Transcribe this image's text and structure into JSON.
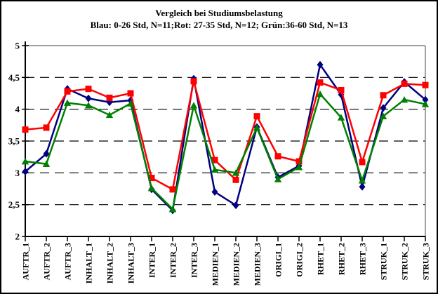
{
  "chart_data": {
    "type": "line",
    "title": "Vergleich bei Studiumsbelastung",
    "subtitle": "Blau: 0-26 Std, N=11;Rot: 27-35 Std, N=12; Grün:36-60 Std, N=13",
    "categories": [
      "AUFTR_1",
      "AUFTR_2",
      "AUFTR_3",
      "INHALT_1",
      "INHALT_2",
      "INHALT_3",
      "INTER_1",
      "INTER_2",
      "INTER_3",
      "MEDIEN_1",
      "MEDIEN_2",
      "MEDIEN_3",
      "ORIGI_1",
      "ORIGI_2",
      "RHET_1",
      "RHET_2",
      "RHET_3",
      "STRUK_1",
      "STRUK_2",
      "STRUK_3"
    ],
    "series": [
      {
        "name": "Blau: 0-26 Std, N=11",
        "color": "#000080",
        "marker": "diamond",
        "values": [
          3.02,
          3.3,
          4.32,
          4.17,
          4.11,
          4.14,
          2.74,
          2.41,
          4.48,
          2.7,
          2.49,
          3.72,
          2.93,
          3.11,
          4.7,
          4.23,
          2.78,
          4.02,
          4.43,
          4.15
        ]
      },
      {
        "name": "Rot: 27-35 Std, N=12",
        "color": "#FF0000",
        "marker": "square",
        "values": [
          3.68,
          3.71,
          4.28,
          4.32,
          4.18,
          4.25,
          2.92,
          2.74,
          4.44,
          3.2,
          2.89,
          3.89,
          3.26,
          3.18,
          4.42,
          4.3,
          3.17,
          4.22,
          4.4,
          4.38
        ]
      },
      {
        "name": "Grün: 36-60 Std, N=13",
        "color": "#008000",
        "marker": "triangle",
        "values": [
          3.18,
          3.14,
          4.1,
          4.06,
          3.91,
          4.09,
          2.76,
          2.43,
          4.06,
          3.05,
          3.0,
          3.71,
          2.9,
          3.09,
          4.24,
          3.87,
          2.88,
          3.89,
          4.15,
          4.08
        ]
      }
    ],
    "ylim": [
      2,
      5
    ],
    "ytick_step": 0.5,
    "ytick_labels": [
      "5",
      "4,5",
      "4",
      "3,5",
      "3",
      "2,5",
      "2"
    ],
    "grid": "horizontal dashed at 2.5–4.5, solid gray at 5 and right border",
    "legend_position": "none (series identified in subtitle)",
    "colors": {
      "axis": "#000000",
      "grid_dashed": "#000000",
      "plot_border_gray": "#808080",
      "background": "#ffffff"
    }
  }
}
